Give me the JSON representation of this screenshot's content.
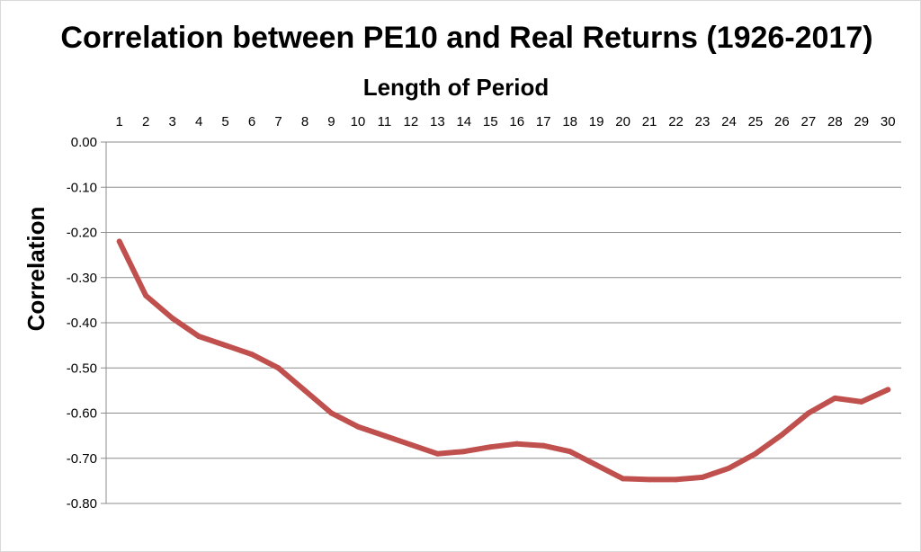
{
  "chart_data": {
    "type": "line",
    "title": "Correlation between PE10 and Real Returns (1926-2017)",
    "xlabel": "Length of Period",
    "ylabel": "Correlation",
    "x": [
      1,
      2,
      3,
      4,
      5,
      6,
      7,
      8,
      9,
      10,
      11,
      12,
      13,
      14,
      15,
      16,
      17,
      18,
      19,
      20,
      21,
      22,
      23,
      24,
      25,
      26,
      27,
      28,
      29,
      30
    ],
    "series": [
      {
        "values": [
          -0.22,
          -0.34,
          -0.39,
          -0.43,
          -0.45,
          -0.47,
          -0.5,
          -0.55,
          -0.6,
          -0.63,
          -0.65,
          -0.67,
          -0.69,
          -0.685,
          -0.675,
          -0.668,
          -0.672,
          -0.685,
          -0.715,
          -0.745,
          -0.747,
          -0.747,
          -0.742,
          -0.722,
          -0.69,
          -0.648,
          -0.6,
          -0.567,
          -0.575,
          -0.548
        ],
        "color": "#c0504d"
      }
    ],
    "ylim": [
      -0.8,
      0
    ],
    "yticks": [
      "0.00",
      "-0.10",
      "-0.20",
      "-0.30",
      "-0.40",
      "-0.50",
      "-0.60",
      "-0.70",
      "-0.80"
    ],
    "xaxis_position": "top",
    "grid": true,
    "legend": "none"
  }
}
